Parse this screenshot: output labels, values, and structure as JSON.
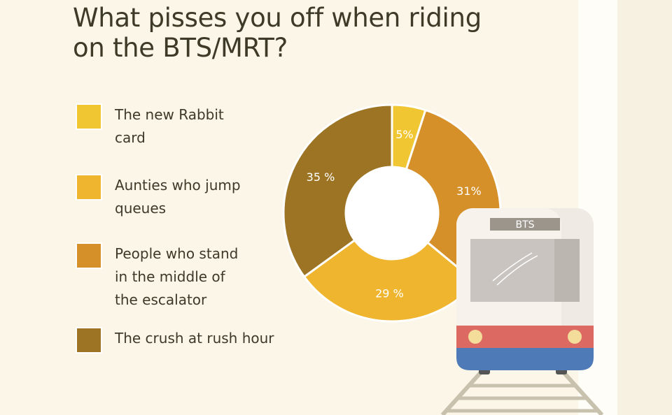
{
  "title": "What pisses you off when riding on the BTS/MRT?",
  "colors": {
    "rabbit": "#f0c733",
    "aunties": "#f0b52e",
    "escalator": "#d69029",
    "rush": "#9c7424"
  },
  "chart_data": {
    "type": "pie",
    "style": "donut",
    "series": [
      {
        "name": "The new Rabbit card",
        "value": 5,
        "label": "5%",
        "color": "#f0c733"
      },
      {
        "name": "People who stand in the middle of the escalator",
        "value": 31,
        "label": "31%",
        "color": "#d69029"
      },
      {
        "name": "Aunties who jump queues",
        "value": 29,
        "label": "29 %",
        "color": "#f0b52e"
      },
      {
        "name": "The crush at rush hour",
        "value": 35,
        "label": "35 %",
        "color": "#9c7424"
      }
    ]
  },
  "legend": [
    {
      "label": "The new Rabbit\ncard",
      "color": "#f0c733"
    },
    {
      "label": "Aunties who jump\nqueues",
      "color": "#f0b52e"
    },
    {
      "label": "People who stand\nin the middle of\nthe escalator",
      "color": "#d69029"
    },
    {
      "label": "The crush at rush hour",
      "color": "#9c7424"
    }
  ],
  "train": {
    "sign": "BTS"
  }
}
